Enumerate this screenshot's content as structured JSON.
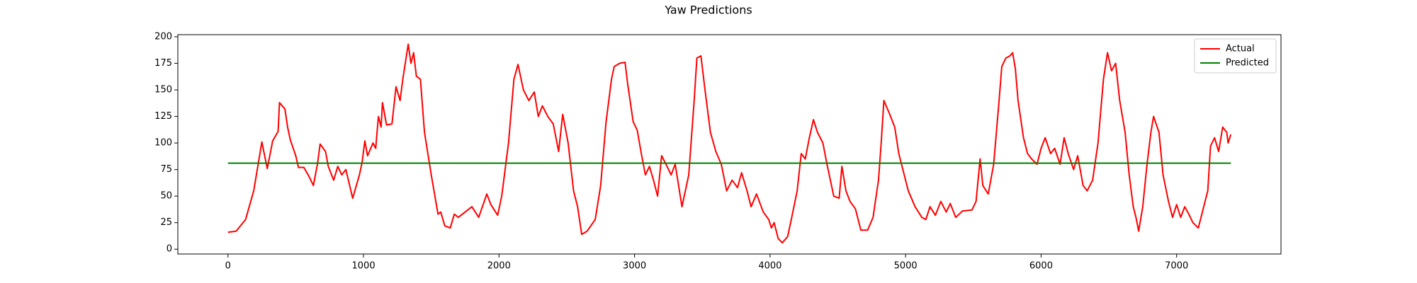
{
  "chart_data": {
    "type": "line",
    "title": "Yaw Predictions",
    "xlim": [
      -370,
      7770
    ],
    "ylim": [
      -4.5,
      202
    ],
    "xticks": [
      0,
      1000,
      2000,
      3000,
      4000,
      5000,
      6000,
      7000
    ],
    "yticks": [
      0,
      25,
      50,
      75,
      100,
      125,
      150,
      175,
      200
    ],
    "legend": "upper right",
    "series": [
      {
        "name": "Actual",
        "color": "#ff0000",
        "x": [
          0,
          60,
          130,
          190,
          250,
          290,
          330,
          370,
          380,
          420,
          440,
          460,
          500,
          520,
          560,
          600,
          630,
          660,
          680,
          720,
          740,
          780,
          810,
          840,
          870,
          920,
          970,
          990,
          1010,
          1030,
          1070,
          1090,
          1110,
          1130,
          1140,
          1170,
          1210,
          1240,
          1270,
          1290,
          1330,
          1350,
          1370,
          1390,
          1420,
          1450,
          1500,
          1550,
          1570,
          1600,
          1640,
          1670,
          1700,
          1750,
          1800,
          1850,
          1910,
          1940,
          1990,
          2020,
          2070,
          2110,
          2140,
          2180,
          2220,
          2260,
          2290,
          2320,
          2360,
          2400,
          2440,
          2470,
          2510,
          2550,
          2580,
          2610,
          2650,
          2710,
          2750,
          2790,
          2830,
          2850,
          2890,
          2930,
          2950,
          2990,
          3020,
          3050,
          3080,
          3110,
          3140,
          3170,
          3200,
          3240,
          3270,
          3300,
          3350,
          3400,
          3440,
          3460,
          3490,
          3520,
          3560,
          3600,
          3640,
          3680,
          3720,
          3760,
          3790,
          3830,
          3860,
          3900,
          3950,
          3990,
          4010,
          4030,
          4060,
          4090,
          4130,
          4160,
          4200,
          4230,
          4260,
          4290,
          4320,
          4350,
          4390,
          4420,
          4470,
          4510,
          4530,
          4560,
          4590,
          4630,
          4670,
          4720,
          4760,
          4800,
          4820,
          4840,
          4880,
          4920,
          4950,
          4980,
          5020,
          5070,
          5120,
          5150,
          5180,
          5220,
          5260,
          5300,
          5330,
          5370,
          5420,
          5490,
          5520,
          5550,
          5570,
          5610,
          5650,
          5690,
          5710,
          5740,
          5770,
          5790,
          5810,
          5830,
          5870,
          5900,
          5930,
          5970,
          6000,
          6030,
          6070,
          6100,
          6140,
          6170,
          6200,
          6240,
          6270,
          6310,
          6340,
          6380,
          6420,
          6460,
          6490,
          6520,
          6550,
          6580,
          6620,
          6650,
          6680,
          6700,
          6720,
          6750,
          6780,
          6810,
          6830,
          6870,
          6900,
          6940,
          6970,
          7000,
          7030,
          7060,
          7090,
          7120,
          7160,
          7190,
          7230,
          7250,
          7280,
          7310,
          7340,
          7370,
          7380,
          7400
        ],
        "values": [
          16,
          17,
          28,
          55,
          101,
          76,
          102,
          111,
          138,
          132,
          115,
          103,
          88,
          77,
          77,
          68,
          60,
          80,
          99,
          92,
          78,
          65,
          78,
          70,
          75,
          48,
          70,
          82,
          102,
          88,
          100,
          95,
          125,
          115,
          138,
          117,
          118,
          153,
          140,
          160,
          193,
          175,
          185,
          163,
          160,
          110,
          70,
          33,
          35,
          22,
          20,
          33,
          30,
          35,
          40,
          30,
          52,
          42,
          32,
          50,
          100,
          160,
          174,
          150,
          140,
          148,
          125,
          135,
          125,
          118,
          92,
          127,
          100,
          55,
          40,
          14,
          17,
          28,
          60,
          120,
          160,
          172,
          175,
          176,
          155,
          120,
          112,
          90,
          70,
          78,
          65,
          50,
          88,
          78,
          70,
          80,
          40,
          70,
          140,
          180,
          182,
          150,
          110,
          92,
          80,
          55,
          65,
          58,
          72,
          55,
          40,
          52,
          35,
          28,
          20,
          25,
          10,
          6,
          12,
          30,
          55,
          90,
          85,
          105,
          122,
          110,
          100,
          80,
          50,
          48,
          78,
          55,
          45,
          38,
          18,
          18,
          30,
          65,
          100,
          140,
          128,
          115,
          90,
          75,
          55,
          40,
          30,
          28,
          40,
          32,
          45,
          35,
          43,
          30,
          36,
          37,
          45,
          85,
          60,
          52,
          80,
          140,
          172,
          180,
          182,
          185,
          170,
          140,
          105,
          90,
          85,
          80,
          95,
          105,
          90,
          95,
          80,
          105,
          90,
          75,
          88,
          60,
          55,
          65,
          100,
          160,
          185,
          168,
          175,
          140,
          110,
          70,
          40,
          30,
          17,
          40,
          78,
          110,
          125,
          110,
          70,
          45,
          30,
          42,
          30,
          40,
          33,
          25,
          20,
          35,
          55,
          97,
          105,
          92,
          115,
          110,
          100,
          108
        ]
      },
      {
        "name": "Predicted",
        "color": "#008000",
        "x": [
          0,
          7400
        ],
        "values": [
          81,
          81
        ]
      }
    ]
  }
}
